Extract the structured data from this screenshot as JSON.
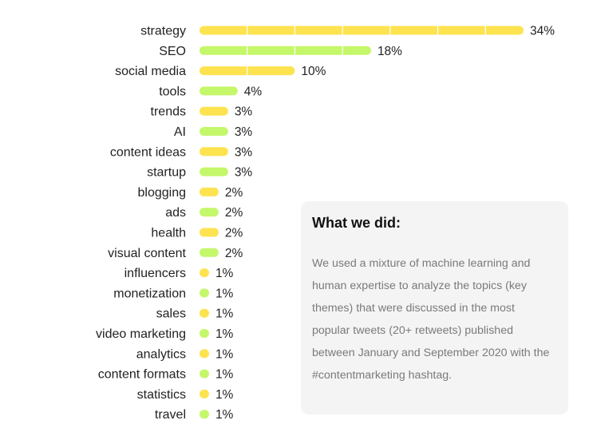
{
  "chart_data": {
    "type": "bar",
    "orientation": "horizontal",
    "categories": [
      "strategy",
      "SEO",
      "social media",
      "tools",
      "trends",
      "AI",
      "content ideas",
      "startup",
      "blogging",
      "ads",
      "health",
      "visual content",
      "influencers",
      "monetization",
      "sales",
      "video marketing",
      "analytics",
      "content formats",
      "statistics",
      "travel"
    ],
    "values": [
      34,
      18,
      10,
      4,
      3,
      3,
      3,
      3,
      2,
      2,
      2,
      2,
      1,
      1,
      1,
      1,
      1,
      1,
      1,
      1
    ],
    "value_labels": [
      "34%",
      "18%",
      "10%",
      "4%",
      "3%",
      "3%",
      "3%",
      "3%",
      "2%",
      "2%",
      "2%",
      "2%",
      "1%",
      "1%",
      "1%",
      "1%",
      "1%",
      "1%",
      "1%",
      "1%"
    ],
    "unit": "%",
    "colors": [
      "#fde34f",
      "#c5f76a"
    ],
    "xlim": [
      0,
      34
    ],
    "grid": false,
    "legend": "none"
  },
  "info": {
    "heading": "What we did:",
    "body": "We used a mixture of machine learning and human expertise to analyze the topics (key themes) that were discussed in the most popular tweets (20+ retweets) published between January and September 2020 with the #contentmarketing hashtag."
  }
}
